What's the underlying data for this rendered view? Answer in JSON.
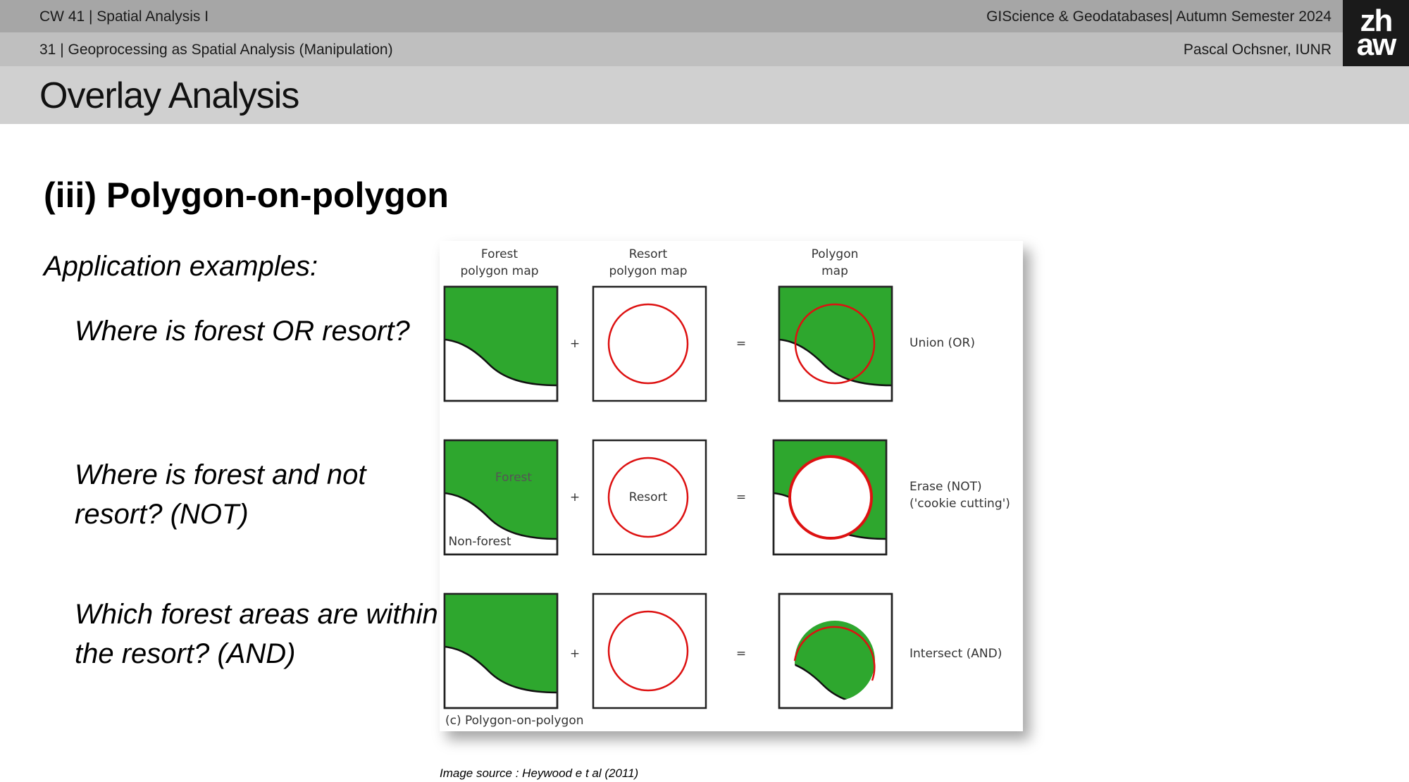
{
  "header": {
    "course_week": "CW 41 | Spatial Analysis I",
    "course_title": "GIScience & Geodatabases| Autumn Semester 2024",
    "slide_ref": "31 | Geoprocessing as Spatial Analysis (Manipulation)",
    "author": "Pascal Ochsner, IUNR",
    "logo_line1": "zh",
    "logo_line2": "aw"
  },
  "title": "Overlay Analysis",
  "section_title": "(iii) Polygon-on-polygon",
  "application_heading": "Application examples:",
  "examples": [
    {
      "text": "Where is forest OR resort?"
    },
    {
      "text": "Where is forest and not resort? (NOT)"
    },
    {
      "text": "Which forest areas are within the resort? (AND)"
    }
  ],
  "figure": {
    "col1_line1": "Forest",
    "col1_line2": "polygon map",
    "col2_line1": "Resort",
    "col2_line2": "polygon map",
    "col3_line1": "Polygon",
    "col3_line2": "map",
    "label_forest": "Forest",
    "label_nonforest": "Non-forest",
    "label_resort": "Resort",
    "op_plus": "+",
    "op_equals": "=",
    "row1_label": "Union (OR)",
    "row2_label_line1": "Erase (NOT)",
    "row2_label_line2": "('cookie cutting')",
    "row3_label": "Intersect (AND)",
    "caption": "(c) Polygon-on-polygon",
    "colors": {
      "forest": "#2ea72e",
      "resort": "#dd1111"
    }
  },
  "image_source": "Image source : Heywood e t al (2011)"
}
